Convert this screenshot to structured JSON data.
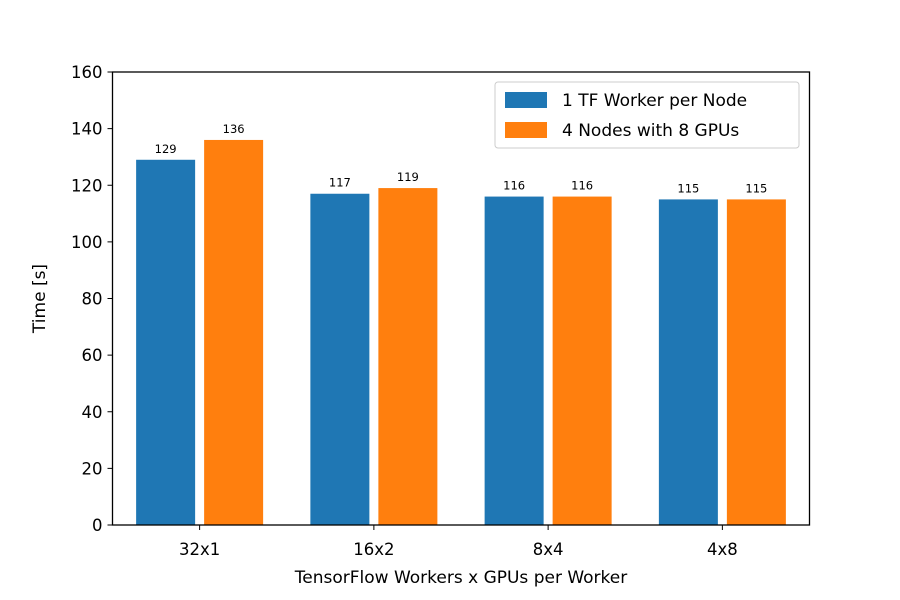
{
  "chart_data": {
    "type": "bar",
    "xlabel": "TensorFlow Workers x GPUs per Worker",
    "ylabel": "Time [s]",
    "categories": [
      "32x1",
      "16x2",
      "8x4",
      "4x8"
    ],
    "series": [
      {
        "name": "1 TF Worker per Node",
        "color": "#1f77b4",
        "values": [
          129,
          117,
          116,
          115
        ]
      },
      {
        "name": "4 Nodes with 8 GPUs",
        "color": "#ff7f0e",
        "values": [
          136,
          119,
          116,
          115
        ]
      }
    ],
    "ylim": [
      0,
      160
    ],
    "yticks": [
      0,
      20,
      40,
      60,
      80,
      100,
      120,
      140,
      160
    ],
    "grid": false,
    "legend_position": "top-right",
    "data_labels": true
  }
}
